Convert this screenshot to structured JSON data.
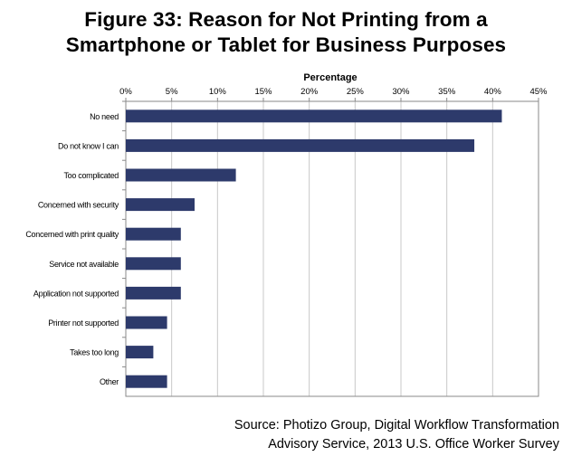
{
  "title_line1": "Figure 33: Reason for Not Printing from a",
  "title_line2": "Smartphone or Tablet for Business Purposes",
  "source_line1": "Source: Photizo Group, Digital Workflow Transformation",
  "source_line2": "Advisory Service, 2013 U.S. Office Worker Survey",
  "chart_data": {
    "type": "bar",
    "orientation": "horizontal",
    "xlabel": "Percentage",
    "xlabel_position": "top",
    "xlim": [
      0,
      45
    ],
    "xticks": [
      "0%",
      "5%",
      "10%",
      "15%",
      "20%",
      "25%",
      "30%",
      "35%",
      "40%",
      "45%"
    ],
    "tick_step": 5,
    "grid": true,
    "bar_color": "#2d3a6b",
    "categories": [
      "No need",
      "Do not know I can",
      "Too complicated",
      "Concerned with security",
      "Concerned with print quality",
      "Service not available",
      "Application not supported",
      "Printer not supported",
      "Takes too long",
      "Other"
    ],
    "values": [
      41,
      38,
      12,
      7.5,
      6,
      6,
      6,
      4.5,
      3,
      4.5
    ]
  }
}
